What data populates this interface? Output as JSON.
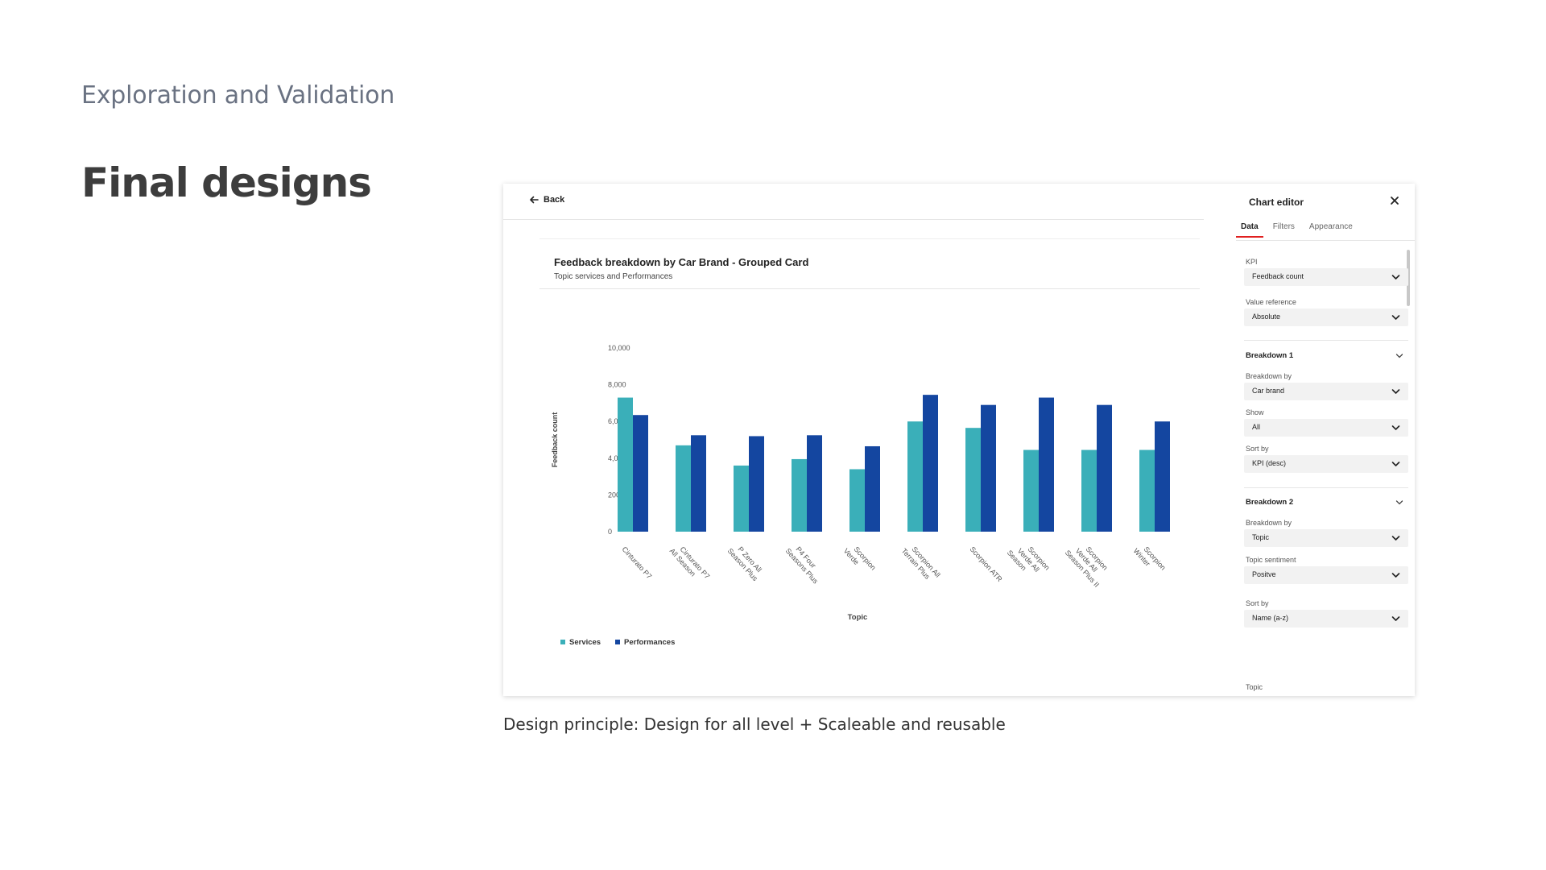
{
  "slide": {
    "section_label": "Exploration and Validation",
    "title": "Final designs",
    "caption": "Design principle: Design for all level + Scaleable and reusable"
  },
  "app": {
    "back_label": "Back",
    "chart": {
      "title": "Feedback breakdown by Car Brand - Grouped Card",
      "subtitle": "Topic services and Performances"
    },
    "editor": {
      "title": "Chart editor",
      "tabs": [
        "Data",
        "Filters",
        "Appearance"
      ],
      "active_tab": "Data",
      "kpi_label": "KPI",
      "kpi_value": "Feedback count",
      "value_ref_label": "Value reference",
      "value_ref_value": "Absolute",
      "breakdown1": {
        "heading": "Breakdown 1",
        "by_label": "Breakdown by",
        "by_value": "Car brand",
        "show_label": "Show",
        "show_value": "All",
        "sort_label": "Sort by",
        "sort_value": "KPI (desc)"
      },
      "breakdown2": {
        "heading": "Breakdown 2",
        "by_label": "Breakdown by",
        "by_value": "Topic",
        "sentiment_label": "Topic sentiment",
        "sentiment_value": "Positve",
        "sort_label": "Sort by",
        "sort_value": "Name (a-z)",
        "topic_label": "Topic"
      }
    }
  },
  "colors": {
    "services": "#3aafb9",
    "performances": "#1446a0",
    "active_tab_underline": "#e02020"
  },
  "chart_data": {
    "type": "bar",
    "title": "Feedback breakdown by Car Brand - Grouped Card",
    "subtitle": "Topic services and Performances",
    "xlabel": "Topic",
    "ylabel": "Feedback count",
    "ylim": [
      0,
      10000
    ],
    "yticks": [
      "0",
      "2000",
      "4,000",
      "6,000",
      "8,000",
      "10,000"
    ],
    "categories": [
      [
        "Cinturato P7"
      ],
      [
        "Cinturato P7",
        "All Season"
      ],
      [
        "P Zero All",
        "Season Plus"
      ],
      [
        "P4 Four",
        "Seasons Plus"
      ],
      [
        "Scorpion",
        "Verde"
      ],
      [
        "Scorpion All",
        "Terrain Plus"
      ],
      [
        "Scorpion ATR"
      ],
      [
        "Scorpion",
        "Verde All",
        "Season"
      ],
      [
        "Scorpion",
        "Verde All",
        "Season Plus II"
      ],
      [
        "Scorpion",
        "Winter"
      ]
    ],
    "series": [
      {
        "name": "Services",
        "values": [
          7300,
          4700,
          3600,
          3950,
          3400,
          6000,
          5650,
          4450,
          4450,
          4450
        ]
      },
      {
        "name": "Performances",
        "values": [
          6350,
          5250,
          5200,
          5250,
          4650,
          7450,
          6900,
          7300,
          6900,
          6000
        ]
      }
    ],
    "legend": "bottom-left",
    "grid": false
  }
}
